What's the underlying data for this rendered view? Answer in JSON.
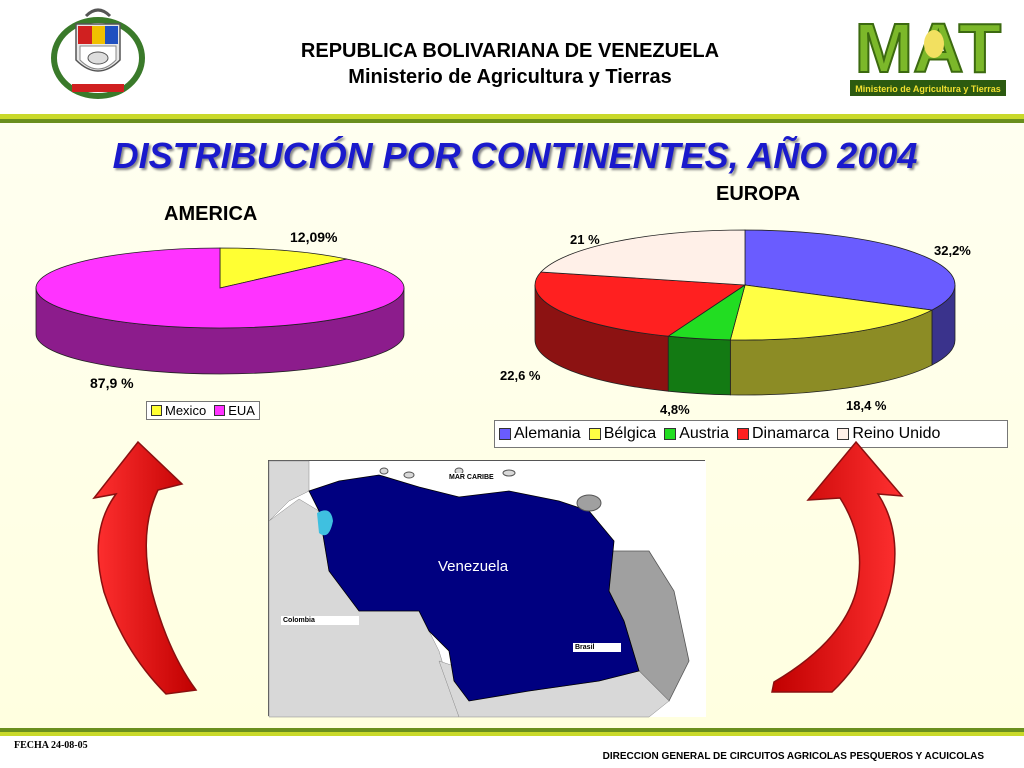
{
  "header": {
    "line1": "REPUBLICA BOLIVARIANA DE VENEZUELA",
    "line2": "Ministerio de Agricultura y Tierras",
    "logo_text": "MAT",
    "logo_subtitle": "Ministerio de Agricultura y Tierras"
  },
  "title": "DISTRIBUCIÓN POR CONTINENTES, AÑO 2004",
  "colors": {
    "title": "#1a1acc",
    "band_light": "#c9d92a",
    "band_dark": "#6a8f1e",
    "arrow": "#e41010"
  },
  "chart_data": [
    {
      "type": "pie",
      "title": "AMERICA",
      "categories": [
        "Mexico",
        "EUA"
      ],
      "values": [
        12.09,
        87.9
      ],
      "labels": [
        "12,09%",
        "87,9 %"
      ],
      "colors": [
        "#ffff33",
        "#ff33ff"
      ],
      "legend": "bottom"
    },
    {
      "type": "pie",
      "title": "EUROPA",
      "categories": [
        "Alemania",
        "Bélgica",
        "Austria",
        "Dinamarca",
        "Reino Unido"
      ],
      "values": [
        32.2,
        18.4,
        4.8,
        22.6,
        21
      ],
      "labels": [
        "32,2%",
        "18,4 %",
        "4,8%",
        "22,6 %",
        "21 %"
      ],
      "colors": [
        "#6a5cff",
        "#ffff44",
        "#22dd22",
        "#ff2020",
        "#fff0e8"
      ],
      "legend": "bottom"
    }
  ],
  "map": {
    "main_label": "Venezuela",
    "labels": [
      "MAR CARIBE",
      "Colombia",
      "Brasil"
    ]
  },
  "footer": {
    "fecha": "FECHA   24-08-05",
    "direccion": "DIRECCION GENERAL DE CIRCUITOS AGRICOLAS  PESQUEROS Y ACUICOLAS"
  }
}
